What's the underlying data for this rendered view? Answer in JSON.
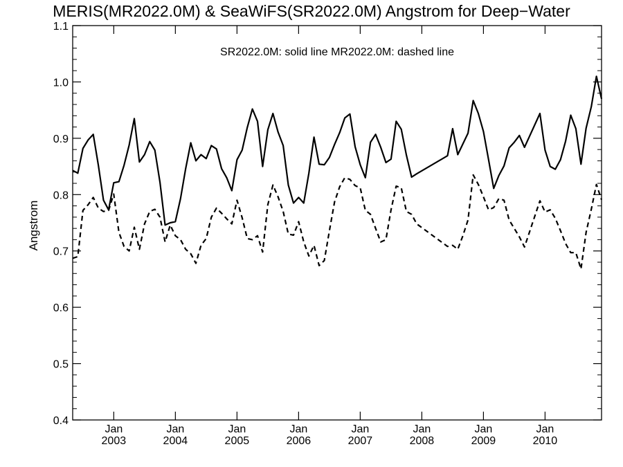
{
  "chart_data": {
    "type": "line",
    "title": "MERIS(MR2022.0M) & SeaWiFS(SR2022.0M)  Angstrom for Deep−Water",
    "annotation": "SR2022.0M: solid line   MR2022.0M: dashed line",
    "ylabel": "Angstrom",
    "xlabel": "",
    "ylim": [
      0.4,
      1.1
    ],
    "yticks": [
      0.4,
      0.5,
      0.6,
      0.7,
      0.8,
      0.9,
      1.0,
      1.1
    ],
    "ytick_labels": [
      "0.4",
      "0.5",
      "0.6",
      "0.7",
      "0.8",
      "0.9",
      "1.0",
      "1.1"
    ],
    "xlim": [
      "2002-05",
      "2010-12"
    ],
    "xticks": [
      {
        "month": "Jan",
        "year": "2003",
        "date": "2003-01"
      },
      {
        "month": "Jan",
        "year": "2004",
        "date": "2004-01"
      },
      {
        "month": "Jan",
        "year": "2005",
        "date": "2005-01"
      },
      {
        "month": "Jan",
        "year": "2006",
        "date": "2006-01"
      },
      {
        "month": "Jan",
        "year": "2007",
        "date": "2007-01"
      },
      {
        "month": "Jan",
        "year": "2008",
        "date": "2008-01"
      },
      {
        "month": "Jan",
        "year": "2009",
        "date": "2009-01"
      },
      {
        "month": "Jan",
        "year": "2010",
        "date": "2010-01"
      }
    ],
    "grid": false,
    "series": [
      {
        "name": "SR2022.0M",
        "style": "solid",
        "color": "#000000",
        "x": [
          "2002-05",
          "2002-06",
          "2002-07",
          "2002-08",
          "2002-09",
          "2002-10",
          "2002-11",
          "2002-12",
          "2003-01",
          "2003-02",
          "2003-03",
          "2003-04",
          "2003-05",
          "2003-06",
          "2003-07",
          "2003-08",
          "2003-09",
          "2003-10",
          "2003-11",
          "2003-12",
          "2004-01",
          "2004-02",
          "2004-03",
          "2004-04",
          "2004-05",
          "2004-06",
          "2004-07",
          "2004-08",
          "2004-09",
          "2004-10",
          "2004-11",
          "2004-12",
          "2005-01",
          "2005-02",
          "2005-03",
          "2005-04",
          "2005-05",
          "2005-06",
          "2005-07",
          "2005-08",
          "2005-09",
          "2005-10",
          "2005-11",
          "2005-12",
          "2006-01",
          "2006-02",
          "2006-03",
          "2006-04",
          "2006-05",
          "2006-06",
          "2006-07",
          "2006-08",
          "2006-09",
          "2006-10",
          "2006-11",
          "2006-12",
          "2007-01",
          "2007-02",
          "2007-03",
          "2007-04",
          "2007-05",
          "2007-06",
          "2007-07",
          "2007-08",
          "2007-09",
          "2007-10",
          "2007-11",
          "2007-12",
          "2008-06",
          "2008-07",
          "2008-08",
          "2008-09",
          "2008-10",
          "2008-11",
          "2008-12",
          "2009-01",
          "2009-02",
          "2009-03",
          "2009-04",
          "2009-05",
          "2009-06",
          "2009-07",
          "2009-08",
          "2009-09",
          "2009-12",
          "2010-01",
          "2010-02",
          "2010-03",
          "2010-04",
          "2010-05",
          "2010-06",
          "2010-07",
          "2010-08",
          "2010-09",
          "2010-10",
          "2010-11",
          "2010-12"
        ],
        "y": [
          0.843,
          0.838,
          0.882,
          0.897,
          0.907,
          0.852,
          0.79,
          0.773,
          0.821,
          0.823,
          0.852,
          0.888,
          0.935,
          0.858,
          0.871,
          0.894,
          0.879,
          0.822,
          0.746,
          0.75,
          0.752,
          0.793,
          0.846,
          0.892,
          0.86,
          0.871,
          0.864,
          0.887,
          0.881,
          0.846,
          0.83,
          0.807,
          0.862,
          0.879,
          0.919,
          0.952,
          0.93,
          0.85,
          0.915,
          0.944,
          0.911,
          0.887,
          0.817,
          0.785,
          0.795,
          0.785,
          0.838,
          0.902,
          0.854,
          0.853,
          0.866,
          0.889,
          0.91,
          0.936,
          0.943,
          0.885,
          0.853,
          0.83,
          0.893,
          0.907,
          0.884,
          0.857,
          0.863,
          0.93,
          0.916,
          0.87,
          0.831,
          0.837,
          0.869,
          0.917,
          0.871,
          0.89,
          0.909,
          0.967,
          0.944,
          0.912,
          0.862,
          0.811,
          0.834,
          0.851,
          0.883,
          0.893,
          0.905,
          0.884,
          0.944,
          0.879,
          0.85,
          0.845,
          0.862,
          0.895,
          0.941,
          0.917,
          0.854,
          0.918,
          0.956,
          1.01,
          0.97
        ]
      },
      {
        "name": "MR2022.0M",
        "style": "dashed",
        "color": "#000000",
        "x": [
          "2002-05",
          "2002-06",
          "2002-07",
          "2002-08",
          "2002-09",
          "2002-10",
          "2002-11",
          "2002-12",
          "2003-01",
          "2003-02",
          "2003-03",
          "2003-04",
          "2003-05",
          "2003-06",
          "2003-07",
          "2003-08",
          "2003-09",
          "2003-10",
          "2003-11",
          "2003-12",
          "2004-01",
          "2004-02",
          "2004-03",
          "2004-04",
          "2004-05",
          "2004-06",
          "2004-07",
          "2004-08",
          "2004-09",
          "2004-10",
          "2004-11",
          "2004-12",
          "2005-01",
          "2005-02",
          "2005-03",
          "2005-04",
          "2005-05",
          "2005-06",
          "2005-07",
          "2005-08",
          "2005-09",
          "2005-10",
          "2005-11",
          "2005-12",
          "2006-01",
          "2006-02",
          "2006-03",
          "2006-04",
          "2006-05",
          "2006-06",
          "2006-07",
          "2006-08",
          "2006-09",
          "2006-10",
          "2006-11",
          "2006-12",
          "2007-01",
          "2007-02",
          "2007-03",
          "2007-04",
          "2007-05",
          "2007-06",
          "2007-07",
          "2007-08",
          "2007-09",
          "2007-10",
          "2007-11",
          "2007-12",
          "2008-06",
          "2008-07",
          "2008-08",
          "2008-09",
          "2008-10",
          "2008-11",
          "2008-12",
          "2009-01",
          "2009-02",
          "2009-03",
          "2009-04",
          "2009-05",
          "2009-06",
          "2009-07",
          "2009-08",
          "2009-09",
          "2009-12",
          "2010-01",
          "2010-02",
          "2010-03",
          "2010-04",
          "2010-05",
          "2010-06",
          "2010-07",
          "2010-08",
          "2010-09",
          "2010-10",
          "2010-11",
          "2010-12"
        ],
        "y": [
          0.687,
          0.69,
          0.772,
          0.782,
          0.795,
          0.776,
          0.77,
          0.772,
          0.801,
          0.733,
          0.708,
          0.7,
          0.742,
          0.703,
          0.748,
          0.77,
          0.774,
          0.76,
          0.716,
          0.746,
          0.727,
          0.72,
          0.703,
          0.695,
          0.678,
          0.71,
          0.722,
          0.76,
          0.776,
          0.767,
          0.757,
          0.748,
          0.79,
          0.759,
          0.722,
          0.72,
          0.727,
          0.698,
          0.782,
          0.817,
          0.796,
          0.77,
          0.73,
          0.728,
          0.752,
          0.716,
          0.691,
          0.71,
          0.674,
          0.683,
          0.736,
          0.787,
          0.814,
          0.83,
          0.827,
          0.816,
          0.812,
          0.772,
          0.765,
          0.74,
          0.716,
          0.72,
          0.773,
          0.815,
          0.812,
          0.77,
          0.765,
          0.748,
          0.708,
          0.71,
          0.703,
          0.727,
          0.755,
          0.835,
          0.818,
          0.796,
          0.773,
          0.777,
          0.793,
          0.79,
          0.755,
          0.74,
          0.725,
          0.707,
          0.789,
          0.769,
          0.773,
          0.758,
          0.736,
          0.713,
          0.697,
          0.697,
          0.668,
          0.733,
          0.774,
          0.818,
          0.791
        ]
      }
    ]
  }
}
